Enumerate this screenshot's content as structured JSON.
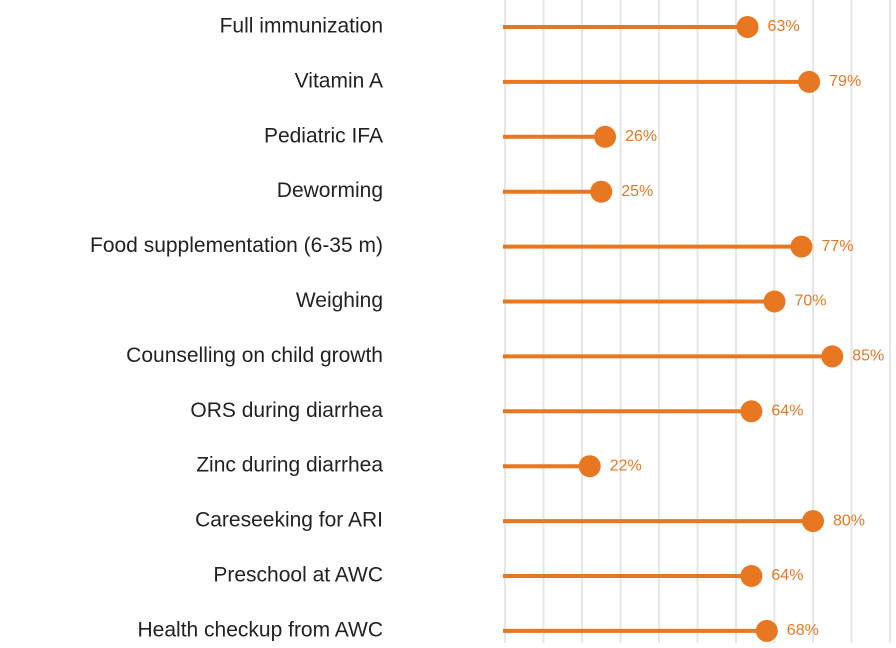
{
  "chart_data": {
    "type": "lollipop",
    "categories": [
      "Full immunization",
      "Vitamin A",
      "Pediatric IFA",
      "Deworming",
      "Food supplementation (6-35 m)",
      "Weighing",
      "Counselling on child growth",
      "ORS during diarrhea",
      "Zinc during diarrhea",
      "Careseeking for ARI",
      "Preschool at AWC",
      "Health checkup from AWC"
    ],
    "values": [
      63,
      79,
      26,
      25,
      77,
      70,
      85,
      64,
      22,
      80,
      64,
      68
    ],
    "value_labels": [
      "63%",
      "79%",
      "26%",
      "25%",
      "77%",
      "70%",
      "85%",
      "64%",
      "22%",
      "80%",
      "64%",
      "68%"
    ],
    "color": "#e87722",
    "xlim": [
      0,
      100
    ],
    "xticks": [
      0,
      10,
      20,
      30,
      40,
      50,
      60,
      70,
      80,
      90,
      100
    ],
    "grid": true
  }
}
